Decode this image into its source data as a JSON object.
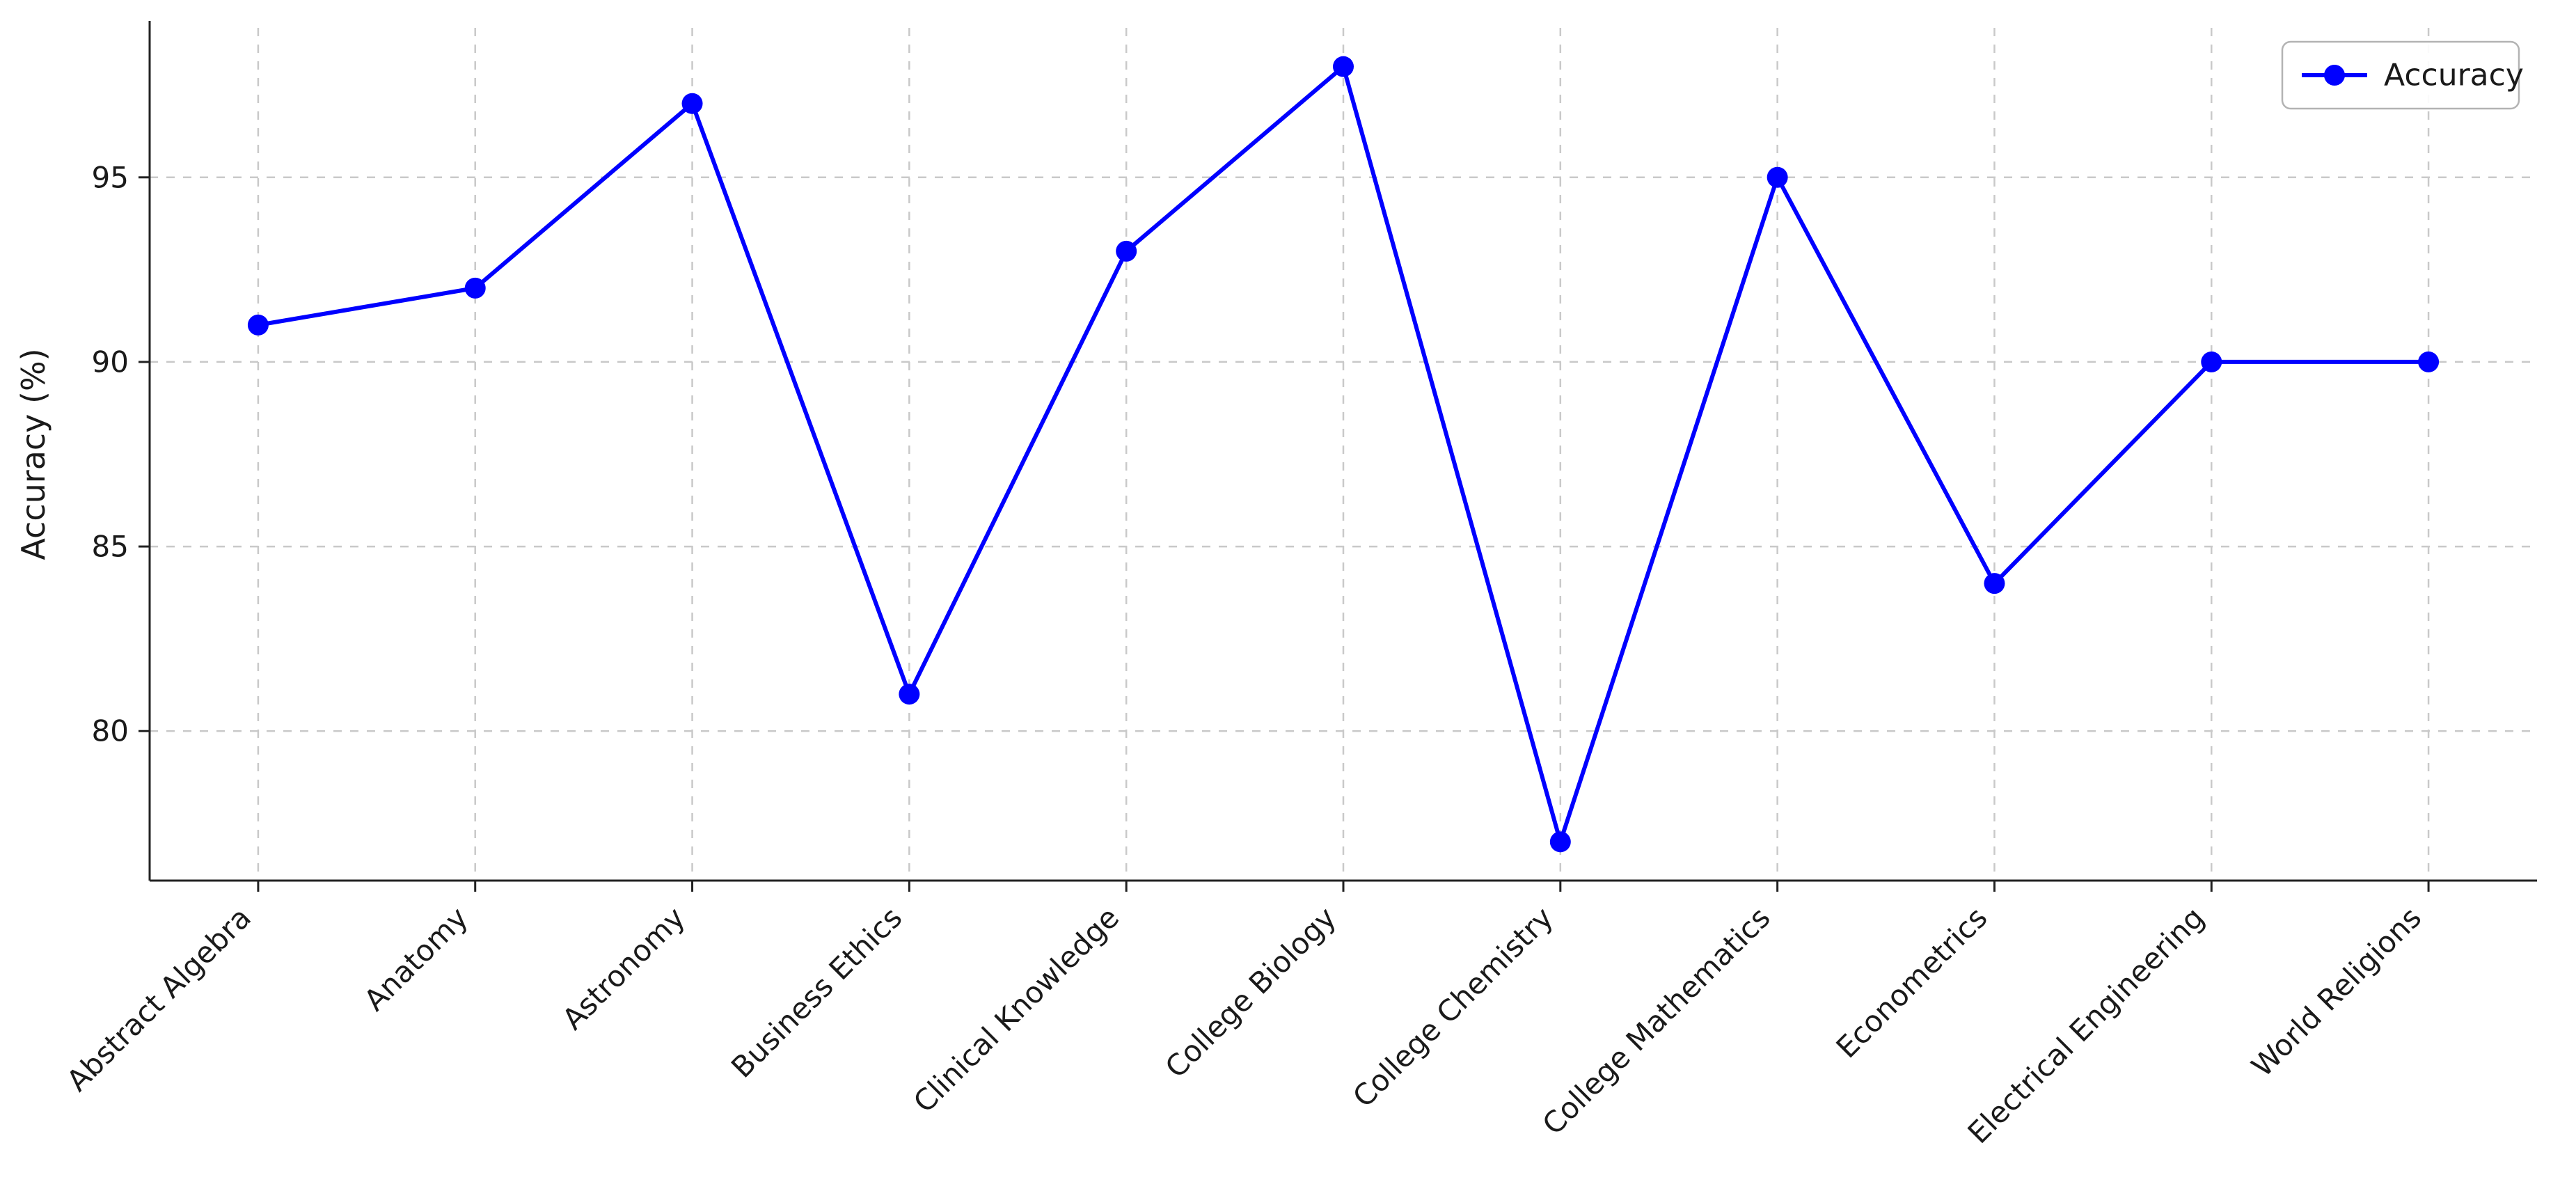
{
  "chart_data": {
    "type": "line",
    "categories": [
      "Abstract Algebra",
      "Anatomy",
      "Astronomy",
      "Business Ethics",
      "Clinical Knowledge",
      "College Biology",
      "College Chemistry",
      "College Mathematics",
      "Econometrics",
      "Electrical Engineering",
      "World Religions"
    ],
    "series": [
      {
        "name": "Accuracy",
        "values": [
          91,
          92,
          97,
          81,
          93,
          98,
          77,
          95,
          84,
          90,
          90
        ],
        "color": "#0000ff"
      }
    ],
    "title": "",
    "xlabel": "",
    "ylabel": "Accuracy (%)",
    "ylim": [
      75.95,
      99.05
    ],
    "yticks": [
      80,
      85,
      90,
      95
    ],
    "grid": true,
    "grid_color": "#c9c9c9",
    "grid_style": "dashed",
    "axis_color": "#222222",
    "text_color": "#1a1a1a",
    "legend": {
      "position": "upper-right",
      "entries": [
        "Accuracy"
      ]
    },
    "background": "#ffffff"
  }
}
